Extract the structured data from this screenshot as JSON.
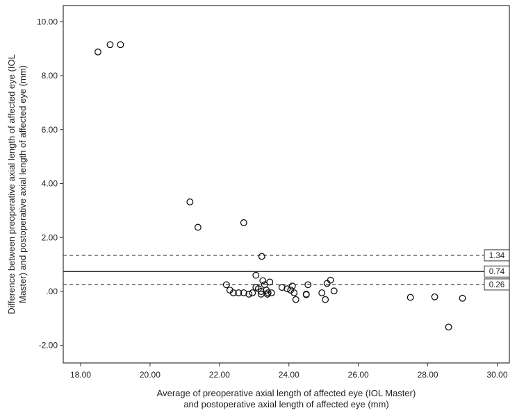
{
  "chart_data": {
    "type": "scatter",
    "title": "",
    "xlabel": [
      "Average of preoperative axial length of affected eye (IOL Master)",
      "and postoperative axial length of affected eye (mm)"
    ],
    "ylabel": [
      "Difference between preoperative axial length of affected eye (IOL",
      "Master) and postoperative axial length of affected eye (mm)"
    ],
    "xlim": [
      17.5,
      30.35
    ],
    "ylim": [
      -2.65,
      10.6
    ],
    "x_ticks": [
      18,
      20,
      22,
      24,
      26,
      28,
      30
    ],
    "x_tick_labels": [
      "18.00",
      "20.00",
      "22.00",
      "24.00",
      "26.00",
      "28.00",
      "30.00"
    ],
    "y_ticks": [
      -2,
      0,
      2,
      4,
      6,
      8,
      10
    ],
    "y_tick_labels": [
      "-2.00",
      ".00",
      "2.00",
      "4.00",
      "6.00",
      "8.00",
      "10.00"
    ],
    "grid": false,
    "reference_lines": [
      {
        "value": 1.34,
        "label": "1.34",
        "style": "dashed"
      },
      {
        "value": 0.74,
        "label": "0.74",
        "style": "solid"
      },
      {
        "value": 0.26,
        "label": "0.26",
        "style": "dashed"
      }
    ],
    "points": [
      {
        "x": 18.5,
        "y": 8.88
      },
      {
        "x": 18.85,
        "y": 9.15
      },
      {
        "x": 19.15,
        "y": 9.15
      },
      {
        "x": 21.15,
        "y": 3.32
      },
      {
        "x": 21.38,
        "y": 2.38
      },
      {
        "x": 22.7,
        "y": 2.55
      },
      {
        "x": 23.22,
        "y": 1.3
      },
      {
        "x": 23.05,
        "y": 0.6
      },
      {
        "x": 22.2,
        "y": 0.25
      },
      {
        "x": 22.3,
        "y": 0.05
      },
      {
        "x": 22.4,
        "y": -0.05
      },
      {
        "x": 22.55,
        "y": -0.05
      },
      {
        "x": 22.7,
        "y": -0.05
      },
      {
        "x": 22.85,
        "y": -0.1
      },
      {
        "x": 22.95,
        "y": -0.05
      },
      {
        "x": 23.05,
        "y": 0.15
      },
      {
        "x": 23.12,
        "y": 0.1
      },
      {
        "x": 23.2,
        "y": 0.0
      },
      {
        "x": 23.25,
        "y": 0.4
      },
      {
        "x": 23.3,
        "y": 0.25
      },
      {
        "x": 23.35,
        "y": 0.05
      },
      {
        "x": 23.4,
        "y": -0.05
      },
      {
        "x": 23.45,
        "y": 0.35
      },
      {
        "x": 23.5,
        "y": -0.05
      },
      {
        "x": 23.2,
        "y": -0.1
      },
      {
        "x": 23.38,
        "y": -0.1
      },
      {
        "x": 23.8,
        "y": 0.15
      },
      {
        "x": 23.95,
        "y": 0.1
      },
      {
        "x": 24.05,
        "y": 0.05
      },
      {
        "x": 24.1,
        "y": 0.2
      },
      {
        "x": 24.15,
        "y": -0.05
      },
      {
        "x": 24.2,
        "y": -0.3
      },
      {
        "x": 24.5,
        "y": -0.1
      },
      {
        "x": 24.55,
        "y": 0.25
      },
      {
        "x": 24.5,
        "y": -0.12
      },
      {
        "x": 24.95,
        "y": -0.05
      },
      {
        "x": 25.05,
        "y": -0.3
      },
      {
        "x": 25.1,
        "y": 0.3
      },
      {
        "x": 25.2,
        "y": 0.42
      },
      {
        "x": 25.3,
        "y": 0.02
      },
      {
        "x": 27.5,
        "y": -0.22
      },
      {
        "x": 28.2,
        "y": -0.2
      },
      {
        "x": 28.6,
        "y": -1.32
      },
      {
        "x": 29.0,
        "y": -0.25
      }
    ]
  }
}
